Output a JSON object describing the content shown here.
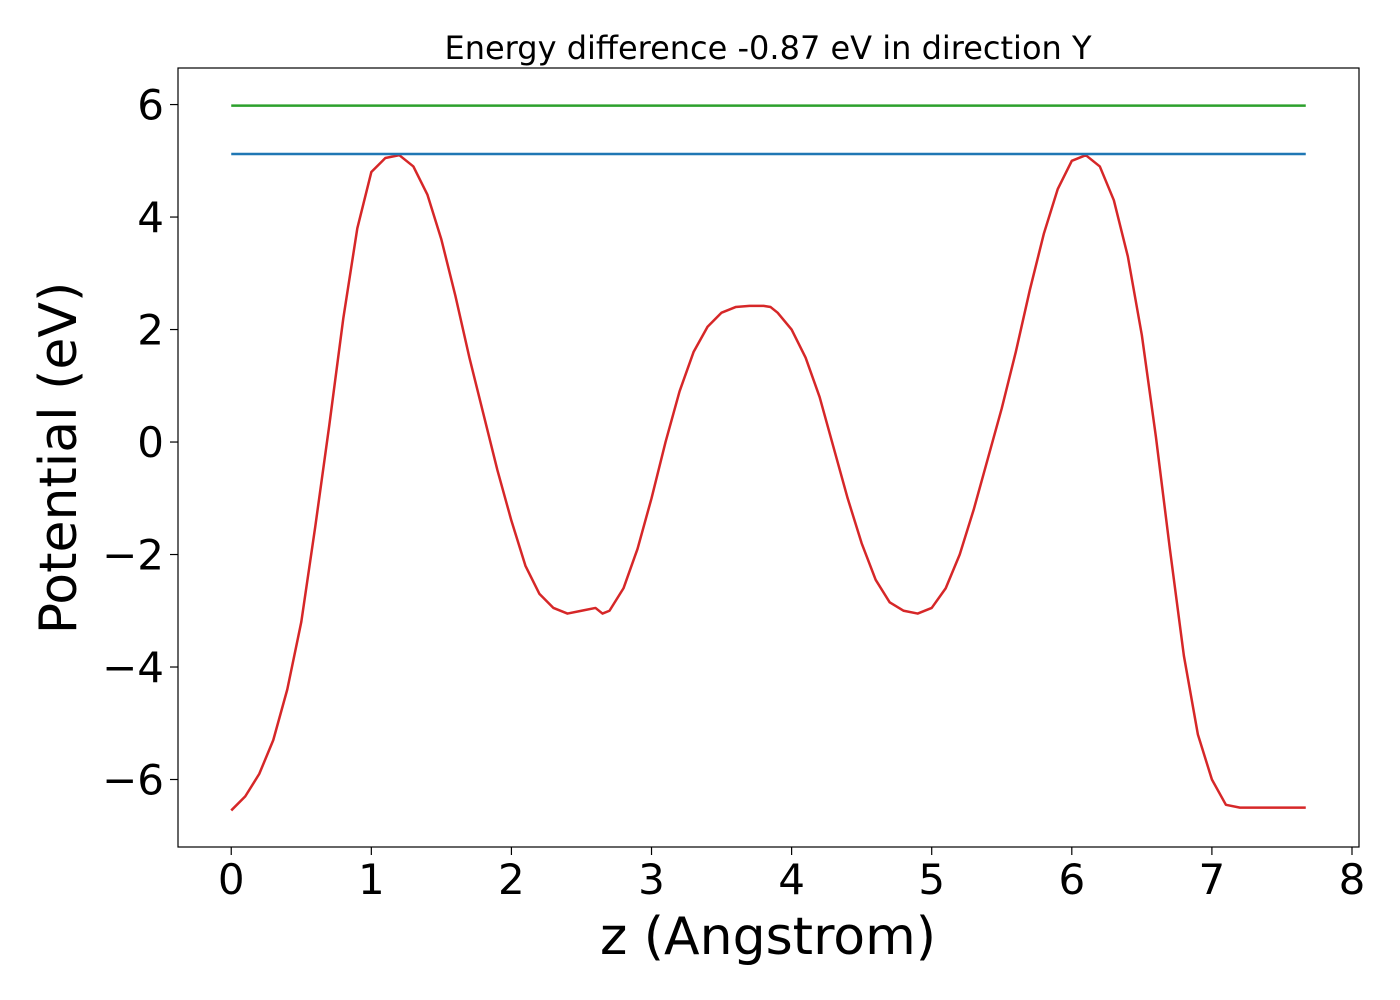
{
  "chart_data": {
    "type": "line",
    "title": "Energy difference -0.87 eV in direction Y",
    "xlabel": "z (Angstrom)",
    "ylabel": "Potential (eV)",
    "xlim": [
      -0.38,
      8.05
    ],
    "ylim": [
      -7.2,
      6.65
    ],
    "xticks": [
      0,
      1,
      2,
      3,
      4,
      5,
      6,
      7,
      8
    ],
    "yticks": [
      -6,
      -4,
      -2,
      0,
      2,
      4,
      6
    ],
    "xtick_labels": [
      "0",
      "1",
      "2",
      "3",
      "4",
      "5",
      "6",
      "7",
      "8"
    ],
    "ytick_labels": [
      "−6",
      "−4",
      "−2",
      "0",
      "2",
      "4",
      "6"
    ],
    "grid": false,
    "series": [
      {
        "color": "#d62728",
        "x": [
          0,
          0.1,
          0.2,
          0.3,
          0.4,
          0.5,
          0.6,
          0.7,
          0.8,
          0.9,
          1.0,
          1.1,
          1.2,
          1.3,
          1.4,
          1.5,
          1.6,
          1.7,
          1.8,
          1.9,
          2.0,
          2.1,
          2.2,
          2.3,
          2.4,
          2.5,
          2.6,
          2.65,
          2.7,
          2.8,
          2.9,
          3.0,
          3.1,
          3.2,
          3.3,
          3.4,
          3.5,
          3.6,
          3.7,
          3.8,
          3.85,
          3.9,
          4.0,
          4.1,
          4.2,
          4.3,
          4.4,
          4.5,
          4.6,
          4.7,
          4.8,
          4.9,
          5.0,
          5.1,
          5.2,
          5.3,
          5.4,
          5.5,
          5.6,
          5.7,
          5.8,
          5.9,
          6.0,
          6.1,
          6.2,
          6.3,
          6.4,
          6.5,
          6.6,
          6.7,
          6.8,
          6.9,
          7.0,
          7.1,
          7.2,
          7.3,
          7.4,
          7.5,
          7.6,
          7.67
        ],
        "y": [
          -6.55,
          -6.3,
          -5.9,
          -5.3,
          -4.4,
          -3.2,
          -1.5,
          0.3,
          2.2,
          3.8,
          4.8,
          5.05,
          5.1,
          4.9,
          4.4,
          3.6,
          2.6,
          1.5,
          0.5,
          -0.5,
          -1.4,
          -2.2,
          -2.7,
          -2.95,
          -3.05,
          -3.0,
          -2.95,
          -3.05,
          -3.0,
          -2.6,
          -1.9,
          -1.0,
          0.0,
          0.9,
          1.6,
          2.05,
          2.3,
          2.4,
          2.42,
          2.42,
          2.4,
          2.3,
          2.0,
          1.5,
          0.8,
          -0.1,
          -1.0,
          -1.8,
          -2.45,
          -2.85,
          -3.0,
          -3.05,
          -2.95,
          -2.6,
          -2.0,
          -1.2,
          -0.3,
          0.6,
          1.6,
          2.7,
          3.7,
          4.5,
          5.0,
          5.1,
          4.9,
          4.3,
          3.3,
          1.9,
          0.1,
          -1.9,
          -3.8,
          -5.2,
          -6.0,
          -6.45,
          -6.5,
          -6.5,
          -6.5,
          -6.5,
          -6.5,
          -6.5
        ]
      },
      {
        "color": "#1f77b4",
        "x": [
          0,
          7.67
        ],
        "y": [
          5.12,
          5.12
        ]
      },
      {
        "color": "#2ca02c",
        "x": [
          0,
          7.67
        ],
        "y": [
          5.98,
          5.98
        ]
      }
    ]
  }
}
